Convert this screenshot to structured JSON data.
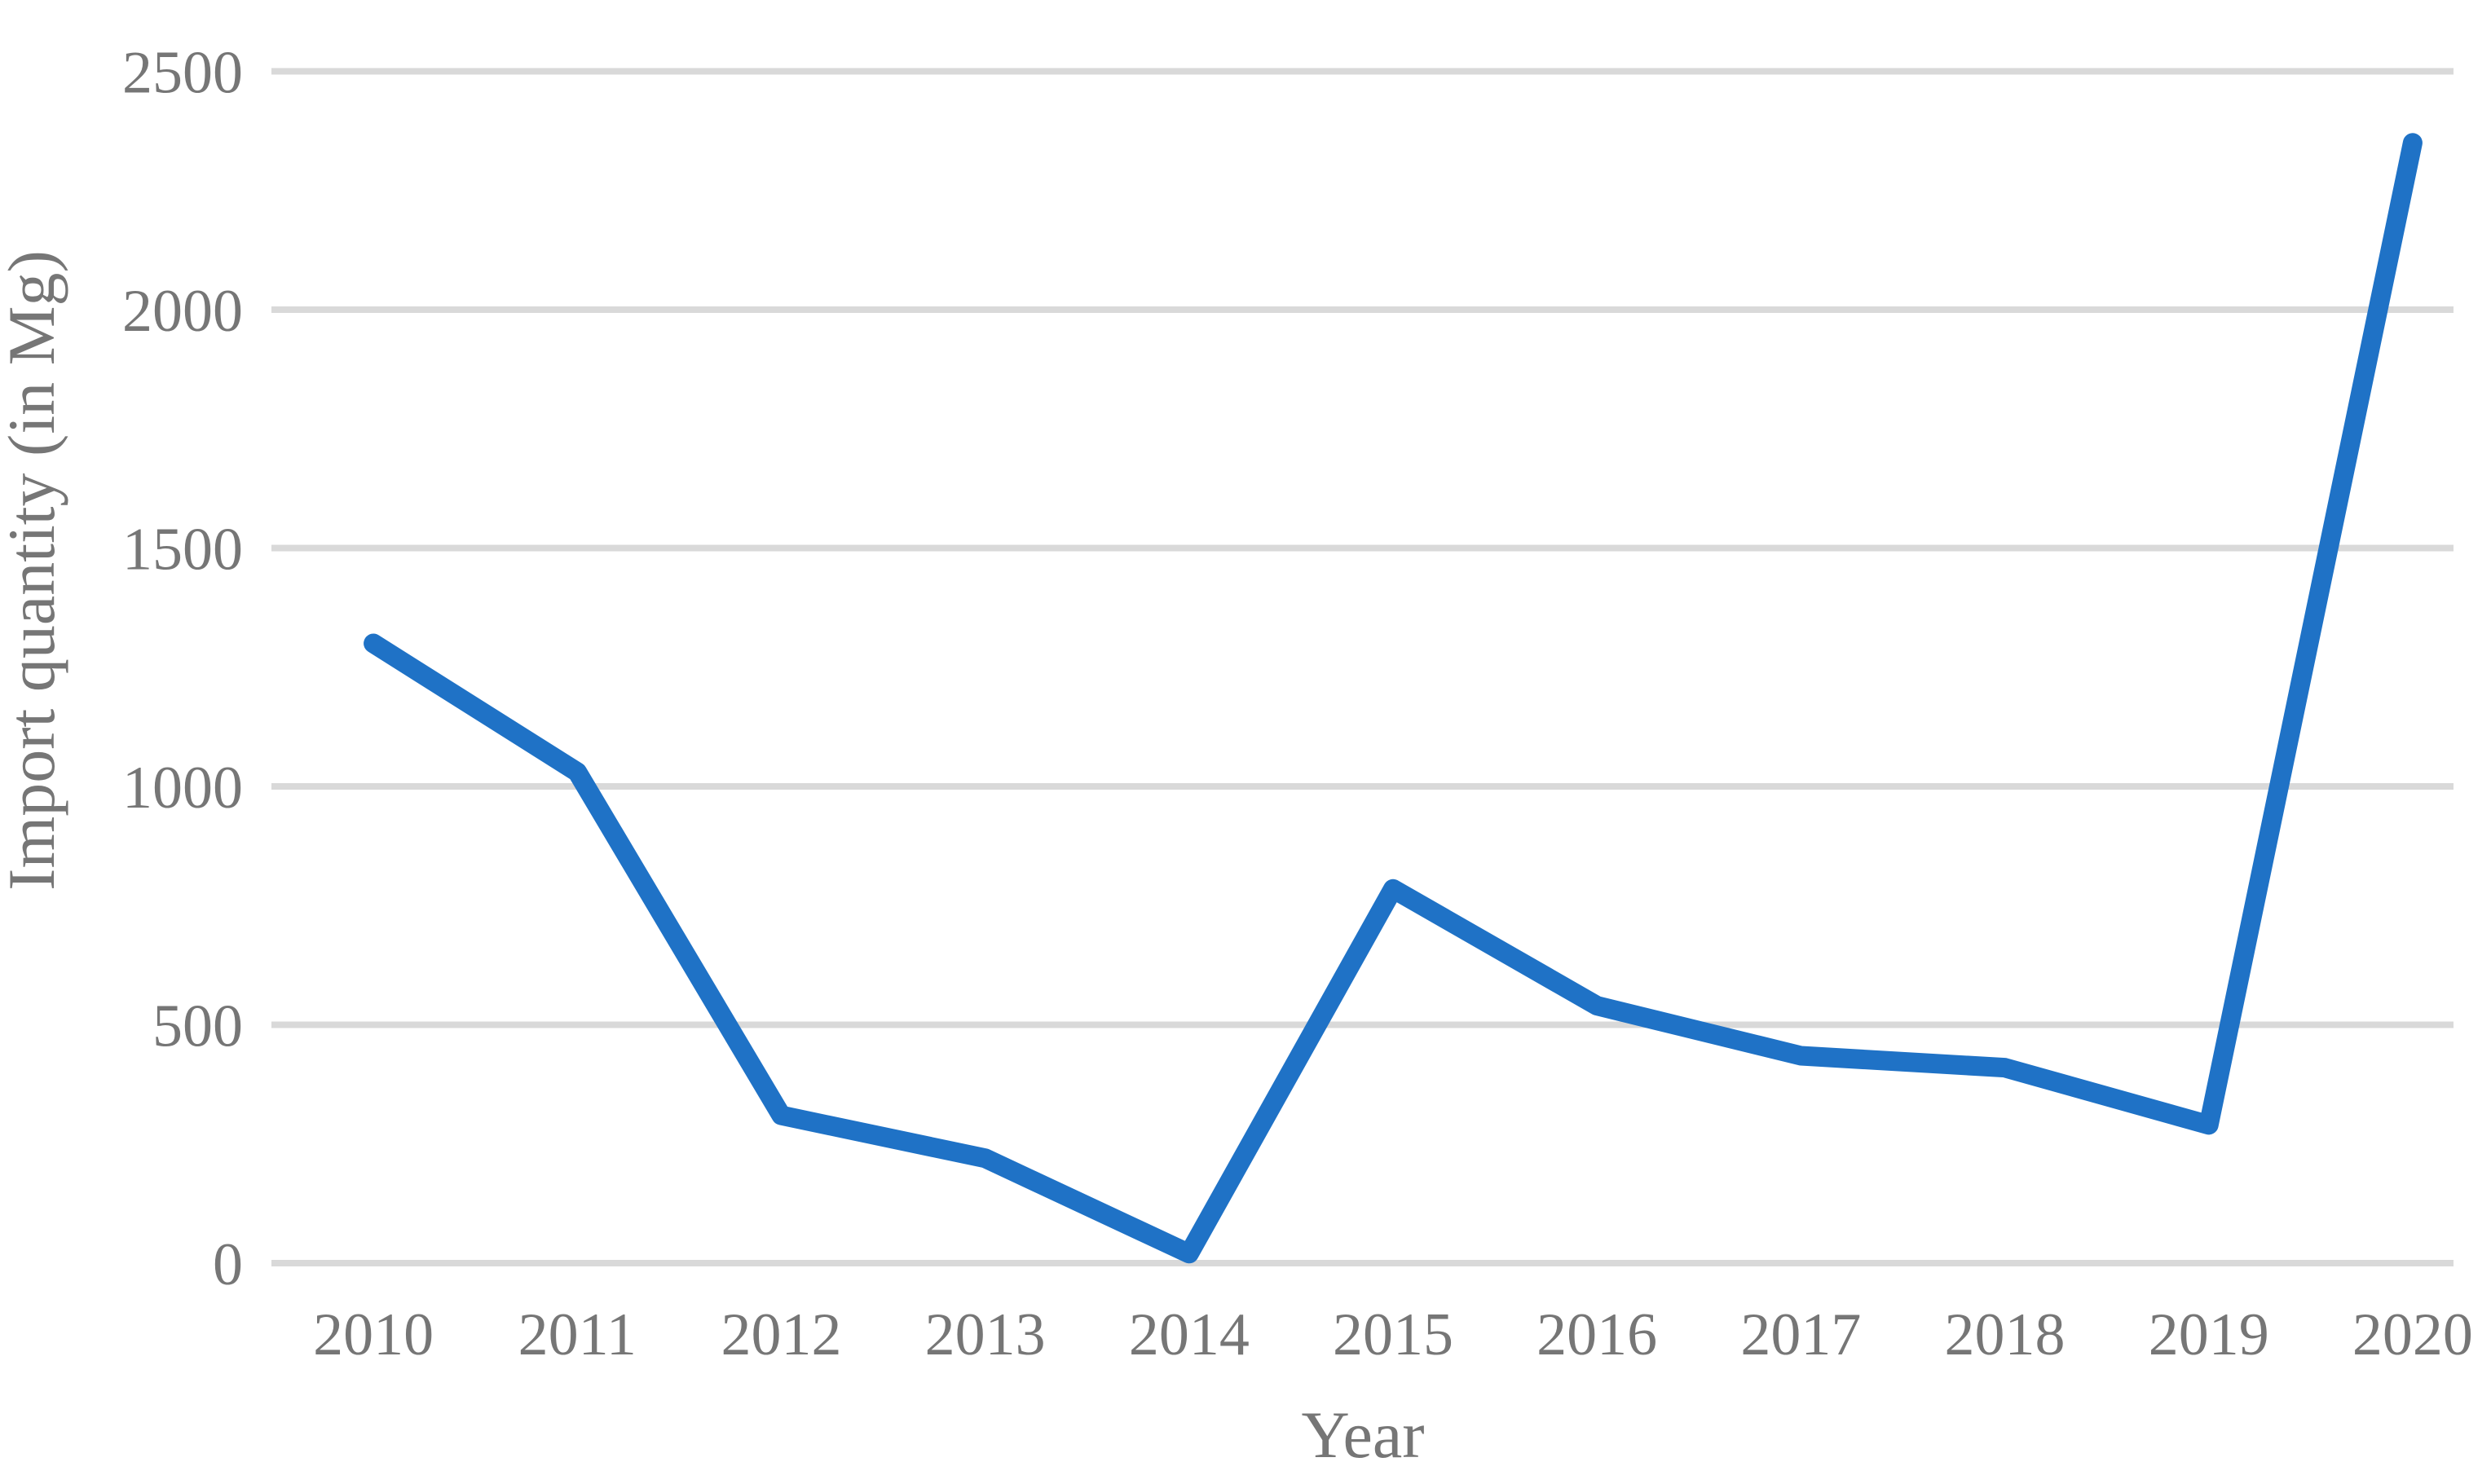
{
  "figure": {
    "background": "#FFFFFF"
  },
  "chart_data": {
    "type": "line",
    "title": "",
    "xlabel": "Year",
    "ylabel": "Import quantity (in Mg)",
    "categories": [
      "2010",
      "2011",
      "2012",
      "2013",
      "2014",
      "2015",
      "2016",
      "2017",
      "2018",
      "2019",
      "2020"
    ],
    "series": [
      {
        "name": "Import quantity",
        "color": "#1F72C6",
        "values": [
          1300,
          1030,
          310,
          220,
          20,
          785,
          540,
          435,
          410,
          290,
          2350
        ]
      }
    ],
    "yticks": [
      0,
      500,
      1000,
      1500,
      2000,
      2500
    ],
    "ylim": [
      0,
      2500
    ],
    "grid": "horizontal-gridlines-on",
    "legend": "none",
    "colors": {
      "line": "#1F72C6",
      "gridline": "#D9D9D9",
      "axis_line": "#D9D9D9",
      "text": "#767676"
    }
  }
}
